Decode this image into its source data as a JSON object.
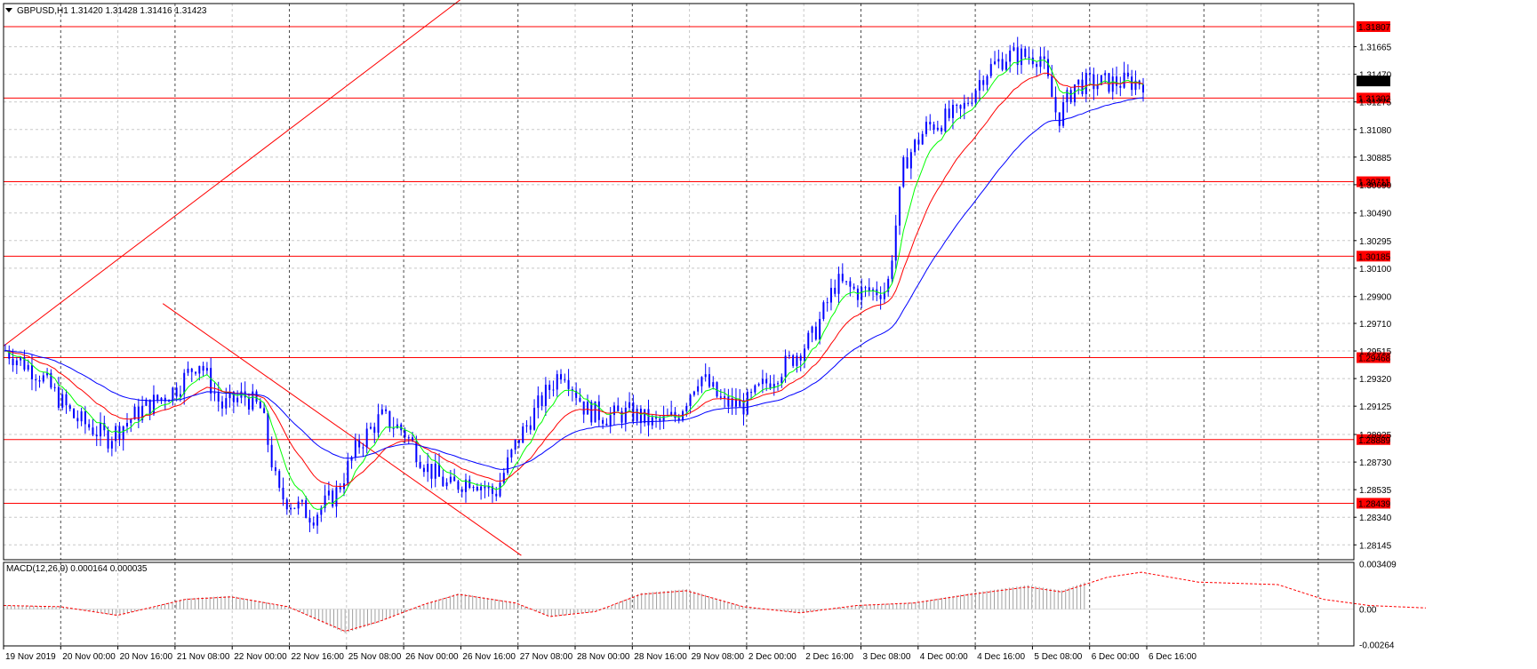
{
  "chart_data": {
    "type": "candlestick",
    "symbol_header": "GBPUSD,H1  1.31420 1.31428 1.31416 1.31423",
    "price_axis_ticks": [
      "1.31665",
      "1.31470",
      "1.31275",
      "1.31080",
      "1.30885",
      "1.30690",
      "1.30490",
      "1.30295",
      "1.30100",
      "1.29900",
      "1.29710",
      "1.29515",
      "1.29320",
      "1.29125",
      "1.28925",
      "1.28730",
      "1.28535",
      "1.28340",
      "1.28145"
    ],
    "price_range": [
      1.2804,
      1.3197
    ],
    "current_price": "1.31423",
    "levels": [
      {
        "label": "1.31807",
        "value": 1.31807
      },
      {
        "label": "1.31302",
        "value": 1.31302
      },
      {
        "label": "1.30711",
        "value": 1.30711
      },
      {
        "label": "1.30185",
        "value": 1.30185
      },
      {
        "label": "1.29468",
        "value": 1.29468
      },
      {
        "label": "1.28889",
        "value": 1.28889
      },
      {
        "label": "1.28439",
        "value": 1.28439
      }
    ],
    "time_labels": [
      "19 Nov 2019",
      "20 Nov 00:00",
      "20 Nov 16:00",
      "21 Nov 08:00",
      "22 Nov 00:00",
      "22 Nov 16:00",
      "25 Nov 08:00",
      "26 Nov 00:00",
      "26 Nov 16:00",
      "27 Nov 08:00",
      "28 Nov 00:00",
      "28 Nov 16:00",
      "29 Nov 08:00",
      "2 Dec 00:00",
      "2 Dec 16:00",
      "3 Dec 08:00",
      "4 Dec 00:00",
      "4 Dec 16:00",
      "5 Dec 08:00",
      "6 Dec 00:00",
      "6 Dec 16:00"
    ],
    "close_keypoints": [
      [
        0,
        1.2952
      ],
      [
        0.03,
        1.2935
      ],
      [
        0.06,
        1.2905
      ],
      [
        0.09,
        1.289
      ],
      [
        0.12,
        1.291
      ],
      [
        0.15,
        1.2925
      ],
      [
        0.17,
        1.2945
      ],
      [
        0.19,
        1.2912
      ],
      [
        0.21,
        1.292
      ],
      [
        0.225,
        1.291
      ],
      [
        0.24,
        1.285
      ],
      [
        0.27,
        1.2835
      ],
      [
        0.29,
        1.285
      ],
      [
        0.31,
        1.2885
      ],
      [
        0.33,
        1.2905
      ],
      [
        0.35,
        1.2895
      ],
      [
        0.37,
        1.287
      ],
      [
        0.39,
        1.2855
      ],
      [
        0.41,
        1.2862
      ],
      [
        0.43,
        1.285
      ],
      [
        0.45,
        1.2888
      ],
      [
        0.47,
        1.2915
      ],
      [
        0.49,
        1.294
      ],
      [
        0.51,
        1.291
      ],
      [
        0.53,
        1.2905
      ],
      [
        0.55,
        1.2908
      ],
      [
        0.57,
        1.29
      ],
      [
        0.59,
        1.2905
      ],
      [
        0.61,
        1.2935
      ],
      [
        0.63,
        1.2915
      ],
      [
        0.65,
        1.2913
      ],
      [
        0.67,
        1.293
      ],
      [
        0.69,
        1.2945
      ],
      [
        0.71,
        1.2962
      ],
      [
        0.73,
        1.3
      ],
      [
        0.75,
        1.2993
      ],
      [
        0.775,
        1.2995
      ],
      [
        0.79,
        1.3085
      ],
      [
        0.81,
        1.311
      ],
      [
        0.84,
        1.312
      ],
      [
        0.86,
        1.3148
      ],
      [
        0.88,
        1.316
      ],
      [
        0.91,
        1.316
      ],
      [
        0.925,
        1.3115
      ],
      [
        0.94,
        1.314
      ],
      [
        1.0,
        1.3142
      ]
    ],
    "ma_fast_color": "#00ff00",
    "ma_mid_color": "#ff0000",
    "ma_slow_color": "#0000ff",
    "trendlines": [
      {
        "from": [
          0.0,
          1.2955
        ],
        "to": [
          0.415,
          1.3208
        ]
      },
      {
        "from": [
          0.14,
          1.2985
        ],
        "to": [
          0.455,
          1.2807
        ]
      }
    ],
    "macd_label": "MACD(12,26,9) 0.000164 0.000035",
    "macd_ticks": [
      "0.003409",
      "0.00",
      "-0.00264"
    ],
    "macd_range": [
      -0.00275,
      0.0035
    ],
    "macd_keypoints": [
      [
        0,
        0.0003
      ],
      [
        0.05,
        0.0002
      ],
      [
        0.1,
        -0.0005
      ],
      [
        0.16,
        0.0008
      ],
      [
        0.2,
        0.001
      ],
      [
        0.25,
        0.0002
      ],
      [
        0.3,
        -0.0018
      ],
      [
        0.33,
        -0.001
      ],
      [
        0.37,
        0.0004
      ],
      [
        0.4,
        0.0012
      ],
      [
        0.45,
        0.0005
      ],
      [
        0.48,
        -0.0006
      ],
      [
        0.52,
        -0.0002
      ],
      [
        0.56,
        0.0012
      ],
      [
        0.6,
        0.0015
      ],
      [
        0.65,
        0.0002
      ],
      [
        0.7,
        -0.0003
      ],
      [
        0.75,
        0.0003
      ],
      [
        0.8,
        0.0005
      ],
      [
        0.85,
        0.0012
      ],
      [
        0.9,
        0.0018
      ],
      [
        0.93,
        0.0014
      ],
      [
        0.97,
        0.0026
      ],
      [
        1.0,
        0.003
      ],
      [
        1.05,
        0.0022
      ],
      [
        1.12,
        0.002
      ],
      [
        1.16,
        0.0008
      ],
      [
        1.2,
        0.0003
      ],
      [
        1.25,
        0.0001
      ]
    ],
    "colors": {
      "candle": "#0000ff",
      "grid": "#c8c8c8",
      "level": "#ff0000",
      "macd_hist": "#a0a0a0",
      "macd_signal": "#ff0000",
      "label_bg": "#ff0000",
      "price_bg": "#000000"
    }
  }
}
